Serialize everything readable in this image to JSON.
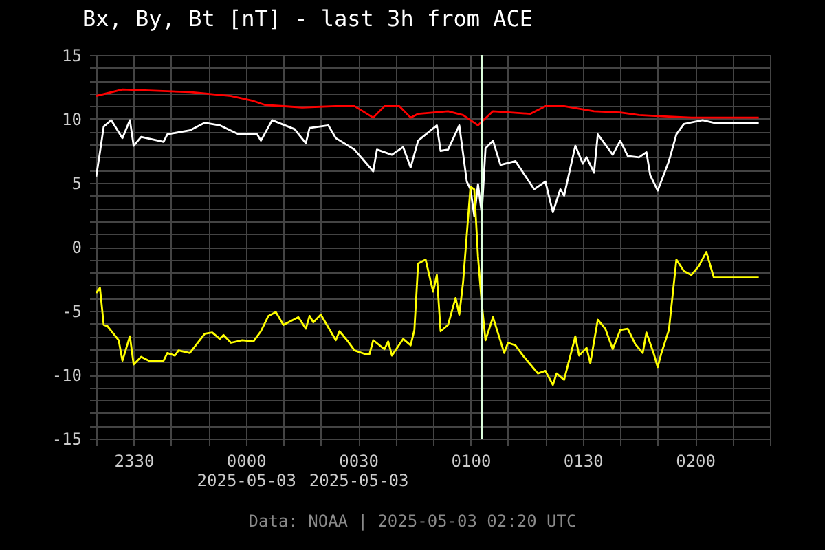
{
  "chart_data": {
    "type": "line",
    "title": "Bx, By, Bt [nT] - last 3h from ACE",
    "annotations": [
      "Data: NOAA | 2025-05-03 02:20 UTC"
    ],
    "xlim": [
      "2025-05-02T23:20",
      "2025-05-03T02:20"
    ],
    "xticks": [
      {
        "value": "2025-05-02T23:20",
        "label": null
      },
      {
        "value": "2025-05-02T23:30",
        "label": "2330"
      },
      {
        "value": "2025-05-02T23:40",
        "label": null
      },
      {
        "value": "2025-05-02T23:50",
        "label": null
      },
      {
        "value": "2025-05-03T00:00",
        "label": "0000\n2025-05-03"
      },
      {
        "value": "2025-05-03T00:10",
        "label": null
      },
      {
        "value": "2025-05-03T00:20",
        "label": null
      },
      {
        "value": "2025-05-03T00:30",
        "label": "0030\n2025-05-03"
      },
      {
        "value": "2025-05-03T00:40",
        "label": null
      },
      {
        "value": "2025-05-03T00:50",
        "label": null
      },
      {
        "value": "2025-05-03T01:00",
        "label": "0100"
      },
      {
        "value": "2025-05-03T01:10",
        "label": null
      },
      {
        "value": "2025-05-03T01:20",
        "label": null
      },
      {
        "value": "2025-05-03T01:30",
        "label": "0130"
      },
      {
        "value": "2025-05-03T01:40",
        "label": null
      },
      {
        "value": "2025-05-03T01:50",
        "label": null
      },
      {
        "value": "2025-05-03T02:00",
        "label": "0200"
      },
      {
        "value": "2025-05-03T02:10",
        "label": null
      },
      {
        "value": "2025-05-03T02:20",
        "label": null
      }
    ],
    "ylim": [
      -15,
      15
    ],
    "yticks": [
      -15,
      {
        "value": -14,
        "label": null
      },
      {
        "value": -13,
        "label": null
      },
      {
        "value": -12,
        "label": null
      },
      {
        "value": -11,
        "label": null
      },
      -10,
      {
        "value": -9,
        "label": null
      },
      {
        "value": -8,
        "label": null
      },
      {
        "value": -7,
        "label": null
      },
      {
        "value": -6,
        "label": null
      },
      -5,
      {
        "value": -4,
        "label": null
      },
      {
        "value": -3,
        "label": null
      },
      {
        "value": -2,
        "label": null
      },
      {
        "value": -1,
        "label": null
      },
      0,
      {
        "value": 1,
        "label": null
      },
      {
        "value": 2,
        "label": null
      },
      {
        "value": 3,
        "label": null
      },
      {
        "value": 4,
        "label": null
      },
      5,
      {
        "value": 6,
        "label": null
      },
      {
        "value": 7,
        "label": null
      },
      {
        "value": 8,
        "label": null
      },
      {
        "value": 9,
        "label": null
      },
      10,
      {
        "value": 11,
        "label": null
      },
      {
        "value": 12,
        "label": null
      },
      {
        "value": 13,
        "label": null
      },
      {
        "value": 14,
        "label": null
      },
      15
    ],
    "grid": true,
    "ref_lines": [
      {
        "axis": "x",
        "value": "2025-05-03T01:03",
        "color": "#ddffdd"
      }
    ],
    "series": [
      {
        "color": "#ff0000",
        "x": [
          "2025-05-02T23:20",
          "2025-05-02T23:27",
          "2025-05-02T23:45",
          "2025-05-02T23:56",
          "2025-05-03T00:02",
          "2025-05-03T00:05",
          "2025-05-03T00:15",
          "2025-05-03T00:24",
          "2025-05-03T00:29",
          "2025-05-03T00:34",
          "2025-05-03T00:37",
          "2025-05-03T00:41",
          "2025-05-03T00:44",
          "2025-05-03T00:46",
          "2025-05-03T00:54",
          "2025-05-03T00:58",
          "2025-05-03T01:02",
          "2025-05-03T01:06",
          "2025-05-03T01:16",
          "2025-05-03T01:20",
          "2025-05-03T01:25",
          "2025-05-03T01:33",
          "2025-05-03T01:40",
          "2025-05-03T01:45",
          "2025-05-03T01:52",
          "2025-05-03T01:59",
          "2025-05-03T02:04",
          "2025-05-03T02:17"
        ],
        "values": [
          11.8,
          12.3,
          12.1,
          11.8,
          11.4,
          11.1,
          10.9,
          11.0,
          11.0,
          10.1,
          11.0,
          11.0,
          10.1,
          10.4,
          10.6,
          10.3,
          9.5,
          10.6,
          10.4,
          11.0,
          11.0,
          10.6,
          10.5,
          10.3,
          10.2,
          10.1,
          10.1,
          10.1
        ]
      },
      {
        "color": "#ffffff",
        "x": [
          "2025-05-02T23:20",
          "2025-05-02T23:21",
          "2025-05-02T23:22",
          "2025-05-02T23:24",
          "2025-05-02T23:27",
          "2025-05-02T23:29",
          "2025-05-02T23:30",
          "2025-05-02T23:32",
          "2025-05-02T23:38",
          "2025-05-02T23:39",
          "2025-05-02T23:45",
          "2025-05-02T23:49",
          "2025-05-02T23:53",
          "2025-05-02T23:58",
          "2025-05-03T00:03",
          "2025-05-03T00:04",
          "2025-05-03T00:07",
          "2025-05-03T00:13",
          "2025-05-03T00:16",
          "2025-05-03T00:17",
          "2025-05-03T00:22",
          "2025-05-03T00:24",
          "2025-05-03T00:29",
          "2025-05-03T00:34",
          "2025-05-03T00:35",
          "2025-05-03T00:39",
          "2025-05-03T00:42",
          "2025-05-03T00:44",
          "2025-05-03T00:46",
          "2025-05-03T00:51",
          "2025-05-03T00:52",
          "2025-05-03T00:54",
          "2025-05-03T00:57",
          "2025-05-03T00:59",
          "2025-05-03T01:00",
          "2025-05-03T01:01",
          "2025-05-03T01:02",
          "2025-05-03T01:03",
          "2025-05-03T01:04",
          "2025-05-03T01:06",
          "2025-05-03T01:08",
          "2025-05-03T01:12",
          "2025-05-03T01:17",
          "2025-05-03T01:20",
          "2025-05-03T01:22",
          "2025-05-03T01:24",
          "2025-05-03T01:25",
          "2025-05-03T01:28",
          "2025-05-03T01:30",
          "2025-05-03T01:31",
          "2025-05-03T01:33",
          "2025-05-03T01:34",
          "2025-05-03T01:38",
          "2025-05-03T01:40",
          "2025-05-03T01:42",
          "2025-05-03T01:45",
          "2025-05-03T01:47",
          "2025-05-03T01:48",
          "2025-05-03T01:50",
          "2025-05-03T01:53",
          "2025-05-03T01:55",
          "2025-05-03T01:57",
          "2025-05-03T02:02",
          "2025-05-03T02:05",
          "2025-05-03T02:17"
        ],
        "values": [
          5.5,
          7.4,
          9.4,
          9.9,
          8.5,
          9.9,
          7.9,
          8.6,
          8.2,
          8.8,
          9.1,
          9.7,
          9.5,
          8.8,
          8.8,
          8.3,
          9.9,
          9.2,
          8.1,
          9.3,
          9.5,
          8.5,
          7.6,
          5.9,
          7.6,
          7.2,
          7.8,
          6.2,
          8.3,
          9.5,
          7.5,
          7.6,
          9.5,
          5.1,
          4.5,
          2.4,
          4.9,
          2.6,
          7.7,
          8.3,
          6.4,
          6.7,
          4.5,
          5.1,
          2.7,
          4.5,
          4.0,
          7.9,
          6.5,
          7.0,
          5.8,
          8.8,
          7.2,
          8.3,
          7.1,
          7.0,
          7.4,
          5.6,
          4.4,
          6.7,
          8.8,
          9.6,
          9.9,
          9.7,
          9.7
        ]
      },
      {
        "color": "#ffff00",
        "x": [
          "2025-05-02T23:20",
          "2025-05-02T23:21",
          "2025-05-02T23:22",
          "2025-05-02T23:23",
          "2025-05-02T23:26",
          "2025-05-02T23:27",
          "2025-05-02T23:29",
          "2025-05-02T23:30",
          "2025-05-02T23:32",
          "2025-05-02T23:34",
          "2025-05-02T23:38",
          "2025-05-02T23:39",
          "2025-05-02T23:41",
          "2025-05-02T23:42",
          "2025-05-02T23:45",
          "2025-05-02T23:49",
          "2025-05-02T23:51",
          "2025-05-02T23:53",
          "2025-05-02T23:54",
          "2025-05-02T23:56",
          "2025-05-02T23:59",
          "2025-05-03T00:02",
          "2025-05-03T00:04",
          "2025-05-03T00:06",
          "2025-05-03T00:08",
          "2025-05-03T00:10",
          "2025-05-03T00:14",
          "2025-05-03T00:16",
          "2025-05-03T00:17",
          "2025-05-03T00:18",
          "2025-05-03T00:20",
          "2025-05-03T00:24",
          "2025-05-03T00:25",
          "2025-05-03T00:27",
          "2025-05-03T00:29",
          "2025-05-03T00:32",
          "2025-05-03T00:33",
          "2025-05-03T00:34",
          "2025-05-03T00:37",
          "2025-05-03T00:38",
          "2025-05-03T00:39",
          "2025-05-03T00:42",
          "2025-05-03T00:44",
          "2025-05-03T00:45",
          "2025-05-03T00:46",
          "2025-05-03T00:48",
          "2025-05-03T00:50",
          "2025-05-03T00:51",
          "2025-05-03T00:52",
          "2025-05-03T00:54",
          "2025-05-03T00:56",
          "2025-05-03T00:57",
          "2025-05-03T00:58",
          "2025-05-03T01:00",
          "2025-05-03T01:01",
          "2025-05-03T01:02",
          "2025-05-03T01:03",
          "2025-05-03T01:04",
          "2025-05-03T01:06",
          "2025-05-03T01:09",
          "2025-05-03T01:10",
          "2025-05-03T01:12",
          "2025-05-03T01:14",
          "2025-05-03T01:18",
          "2025-05-03T01:20",
          "2025-05-03T01:22",
          "2025-05-03T01:23",
          "2025-05-03T01:25",
          "2025-05-03T01:28",
          "2025-05-03T01:29",
          "2025-05-03T01:31",
          "2025-05-03T01:32",
          "2025-05-03T01:34",
          "2025-05-03T01:36",
          "2025-05-03T01:38",
          "2025-05-03T01:40",
          "2025-05-03T01:42",
          "2025-05-03T01:44",
          "2025-05-03T01:46",
          "2025-05-03T01:47",
          "2025-05-03T01:49",
          "2025-05-03T01:50",
          "2025-05-03T01:51",
          "2025-05-03T01:53",
          "2025-05-03T01:55",
          "2025-05-03T01:57",
          "2025-05-03T01:59",
          "2025-05-03T02:01",
          "2025-05-03T02:03",
          "2025-05-03T02:05",
          "2025-05-03T02:17"
        ],
        "values": [
          -3.6,
          -3.2,
          -6.1,
          -6.2,
          -7.3,
          -8.9,
          -7.0,
          -9.2,
          -8.6,
          -8.9,
          -8.9,
          -8.3,
          -8.5,
          -8.1,
          -8.3,
          -6.8,
          -6.7,
          -7.2,
          -6.9,
          -7.5,
          -7.3,
          -7.4,
          -6.6,
          -5.4,
          -5.1,
          -6.1,
          -5.5,
          -6.4,
          -5.4,
          -5.9,
          -5.3,
          -7.3,
          -6.6,
          -7.3,
          -8.1,
          -8.4,
          -8.4,
          -7.3,
          -8.0,
          -7.4,
          -8.5,
          -7.2,
          -7.7,
          -6.5,
          -1.3,
          -1.0,
          -3.5,
          -2.2,
          -6.6,
          -6.1,
          -4.0,
          -5.3,
          -2.8,
          4.7,
          4.5,
          -0.8,
          -4.4,
          -7.3,
          -5.5,
          -8.3,
          -7.5,
          -7.7,
          -8.5,
          -9.9,
          -9.7,
          -10.8,
          -9.9,
          -10.4,
          -7.0,
          -8.5,
          -7.9,
          -9.1,
          -5.7,
          -6.4,
          -8.0,
          -6.5,
          -6.4,
          -7.6,
          -8.3,
          -6.7,
          -8.4,
          -9.4,
          -8.3,
          -6.5,
          -1.0,
          -1.9,
          -2.2,
          -1.5,
          -0.4,
          -2.4,
          -2.4
        ]
      }
    ]
  }
}
